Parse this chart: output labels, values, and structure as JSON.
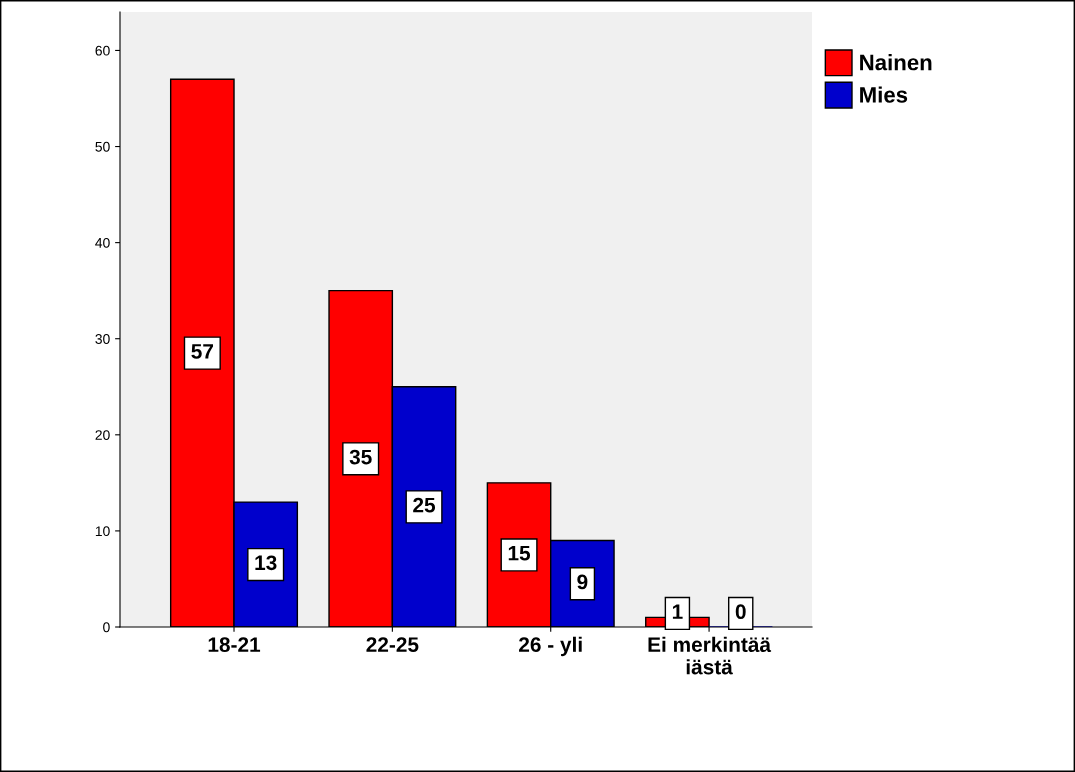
{
  "chart_data": {
    "type": "bar",
    "categories": [
      "18-21",
      "22-25",
      "26 - yli",
      "Ei merkintää\niästä"
    ],
    "series": [
      {
        "name": "Nainen",
        "color": "#ff0000",
        "values": [
          57,
          35,
          15,
          1
        ]
      },
      {
        "name": "Mies",
        "color": "#0000cc",
        "values": [
          13,
          25,
          9,
          0
        ]
      }
    ],
    "ylim": [
      0,
      64
    ],
    "yticks": [
      0,
      10,
      20,
      30,
      40,
      50,
      60
    ],
    "data_labels": true,
    "legend": "top right",
    "grid": false
  }
}
